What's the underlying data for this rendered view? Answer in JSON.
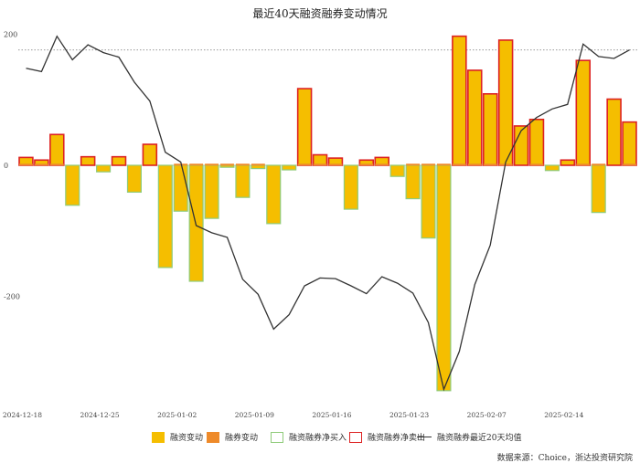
{
  "chart_data": {
    "type": "bar+line",
    "title": "最近40天融资融券变动情况",
    "y_ticks": [
      200,
      0,
      -200
    ],
    "ylim": [
      -350,
      200
    ],
    "reference_line": 176,
    "x_tick_labels": [
      {
        "index": 0,
        "label": "2024-12-18"
      },
      {
        "index": 5,
        "label": "2024-12-25"
      },
      {
        "index": 10,
        "label": "2025-01-02"
      },
      {
        "index": 15,
        "label": "2025-01-09"
      },
      {
        "index": 20,
        "label": "2025-01-16"
      },
      {
        "index": 25,
        "label": "2025-01-23"
      },
      {
        "index": 30,
        "label": "2025-02-07"
      },
      {
        "index": 35,
        "label": "2025-02-14"
      }
    ],
    "series": [
      {
        "name": "融资变动",
        "color": "#F5BE00",
        "values": [
          12,
          8,
          47,
          -61,
          13,
          -10,
          13,
          -41,
          32,
          -156,
          -70,
          -177,
          -81,
          -3,
          -49,
          -5,
          -89,
          -7,
          117,
          16,
          11,
          -67,
          8,
          12,
          -17,
          -51,
          -111,
          -344,
          197,
          145,
          109,
          191,
          60,
          70,
          -8,
          8,
          160,
          -72,
          101,
          66
        ]
      },
      {
        "name": "融券变动",
        "color": "#EE8A2A",
        "values": [
          1,
          1,
          1,
          0,
          0,
          0,
          0,
          0,
          0,
          0,
          1,
          1,
          1,
          1,
          1,
          1,
          0,
          0,
          1,
          1,
          1,
          0,
          1,
          1,
          0,
          1,
          1,
          1,
          1,
          1,
          1,
          1,
          0,
          1,
          0,
          0,
          1,
          1,
          0,
          1
        ]
      },
      {
        "name": "融资融券净买入",
        "color": "#8FCB7A"
      },
      {
        "name": "融资融券净卖出",
        "color": "#DD2222"
      },
      {
        "name": "融资融券最近20天均值",
        "color": "#333333",
        "values": [
          148,
          143,
          197,
          161,
          184,
          172,
          165,
          127,
          98,
          20,
          5,
          -92,
          -103,
          -110,
          -174,
          -197,
          -250,
          -228,
          -184,
          -172,
          -173,
          -184,
          -196,
          -170,
          -180,
          -195,
          -240,
          -342,
          -284,
          -182,
          -122,
          5,
          53,
          73,
          86,
          93,
          185,
          166,
          163,
          176
        ]
      }
    ]
  },
  "source": "数据来源：Choice，浙达投资研究院"
}
